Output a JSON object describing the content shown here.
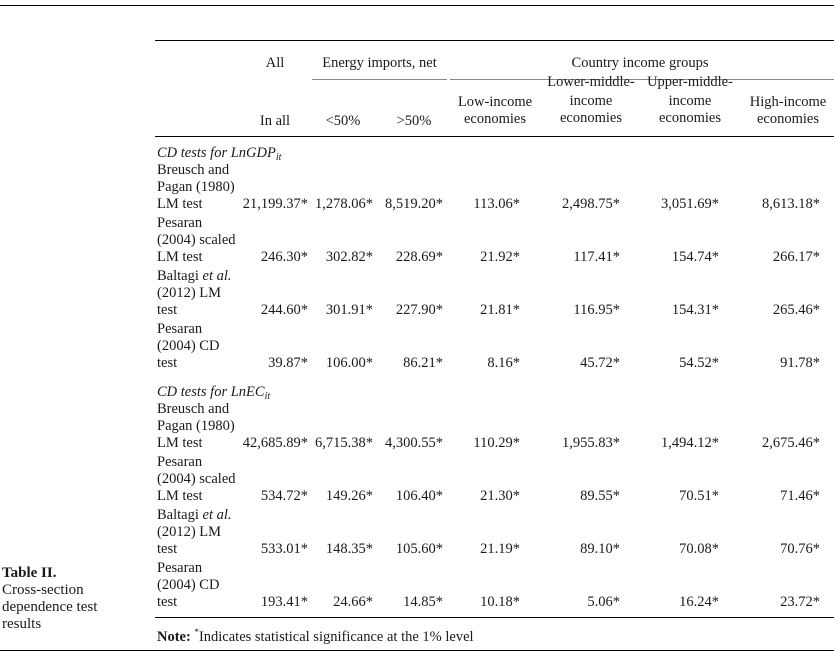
{
  "caption": {
    "title": "Table II.",
    "lines": [
      "Cross-section",
      "dependence test",
      "results"
    ]
  },
  "header": {
    "all_top": "All",
    "energy_group": "Energy imports, net",
    "country_group": "Country income groups",
    "in_all": "In all",
    "lt50": "<50%",
    "gt50": ">50%",
    "low_income": [
      "Low-income",
      "economies"
    ],
    "lower_middle": [
      "Lower-middle-",
      "income",
      "economies"
    ],
    "upper_middle": [
      "Upper-middle-",
      "income",
      "economies"
    ],
    "high_income": [
      "High-income",
      "economies"
    ]
  },
  "sections": [
    {
      "title_prefix": "CD tests for ",
      "title_var": "LnGDP",
      "title_sub": "it",
      "rows": [
        {
          "label": [
            "Breusch and",
            "Pagan (1980)",
            "LM test"
          ],
          "values": [
            "21,199.37*",
            "1,278.06*",
            "8,519.20*",
            "113.06*",
            "2,498.75*",
            "3,051.69*",
            "8,613.18*"
          ]
        },
        {
          "label": [
            "Pesaran",
            "(2004) scaled",
            "LM test"
          ],
          "values": [
            "246.30*",
            "302.82*",
            "228.69*",
            "21.92*",
            "117.41*",
            "154.74*",
            "266.17*"
          ]
        },
        {
          "label": [
            "Baltagi et al.",
            "(2012) LM",
            "test"
          ],
          "values": [
            "244.60*",
            "301.91*",
            "227.90*",
            "21.81*",
            "116.95*",
            "154.31*",
            "265.46*"
          ]
        },
        {
          "label": [
            "Pesaran",
            "(2004) CD",
            "test"
          ],
          "values": [
            "39.87*",
            "106.00*",
            "86.21*",
            "8.16*",
            "45.72*",
            "54.52*",
            "91.78*"
          ]
        }
      ]
    },
    {
      "title_prefix": "CD tests for ",
      "title_var": "LnEC",
      "title_sub": "it",
      "rows": [
        {
          "label": [
            "Breusch and",
            "Pagan (1980)",
            "LM test"
          ],
          "values": [
            "42,685.89*",
            "6,715.38*",
            "4,300.55*",
            "110.29*",
            "1,955.83*",
            "1,494.12*",
            "2,675.46*"
          ]
        },
        {
          "label": [
            "Pesaran",
            "(2004) scaled",
            "LM test"
          ],
          "values": [
            "534.72*",
            "149.26*",
            "106.40*",
            "21.30*",
            "89.55*",
            "70.51*",
            "71.46*"
          ]
        },
        {
          "label": [
            "Baltagi et al.",
            "(2012) LM",
            "test"
          ],
          "values": [
            "533.01*",
            "148.35*",
            "105.60*",
            "21.19*",
            "89.10*",
            "70.08*",
            "70.76*"
          ]
        },
        {
          "label": [
            "Pesaran",
            "(2004) CD",
            "test"
          ],
          "values": [
            "193.41*",
            "24.66*",
            "14.85*",
            "10.18*",
            "5.06*",
            "16.24*",
            "23.72*"
          ]
        }
      ]
    }
  ],
  "note": {
    "label": "Note:",
    "star": "*",
    "text": "Indicates statistical significance at the 1% level"
  }
}
